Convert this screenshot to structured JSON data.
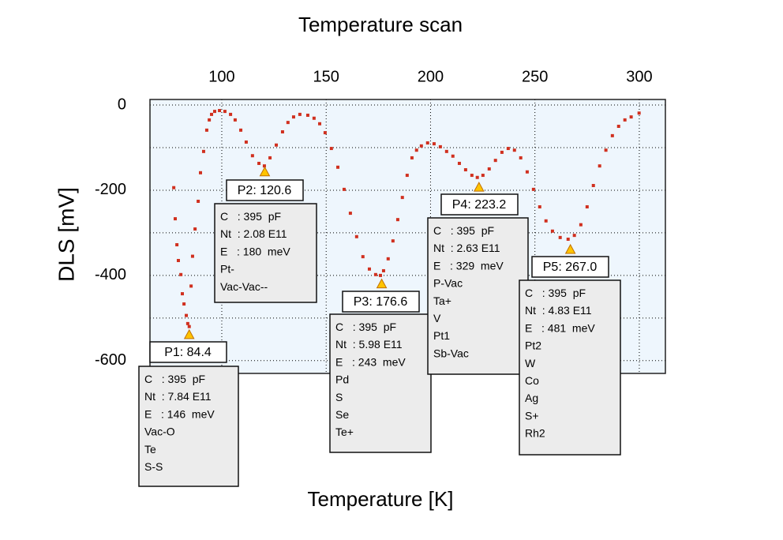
{
  "chart_data": {
    "type": "scatter",
    "title": "Temperature scan",
    "xlabel": "Temperature  [K]",
    "ylabel": "DLS [mV]",
    "xlim": [
      65.6,
      312.5
    ],
    "xticks": [
      100,
      150,
      200,
      250,
      300
    ],
    "xaxis_position": "top",
    "ylim": [
      -630,
      13
    ],
    "yticks": [
      0,
      -200,
      -400,
      -600
    ],
    "yminor": [
      -100,
      -300,
      -500
    ],
    "grid": true,
    "color": "#d0301f",
    "background": "#eef6fd",
    "series": [
      {
        "name": "DLS",
        "x": [
          77.0,
          77.7,
          78.5,
          79.2,
          80.4,
          81.1,
          81.9,
          83.0,
          83.7,
          84.4,
          85.3,
          86.0,
          87.2,
          88.7,
          89.8,
          91.3,
          92.8,
          94.0,
          95.1,
          96.6,
          98.9,
          101.5,
          104.2,
          106.4,
          109.1,
          111.7,
          114.7,
          117.8,
          120.4,
          123.1,
          126.1,
          129.1,
          131.7,
          134.4,
          137.4,
          141.2,
          144.2,
          146.9,
          149.5,
          152.5,
          155.6,
          158.6,
          161.6,
          164.6,
          167.6,
          170.7,
          173.7,
          176.0,
          177.5,
          179.7,
          182.0,
          184.3,
          186.5,
          188.8,
          191.1,
          193.3,
          195.6,
          198.6,
          201.7,
          204.7,
          207.7,
          210.7,
          213.8,
          216.8,
          219.8,
          222.4,
          225.1,
          228.1,
          231.1,
          234.2,
          237.2,
          240.2,
          243.2,
          246.3,
          249.3,
          252.3,
          255.3,
          258.4,
          262.1,
          265.9,
          268.9,
          272.0,
          275.0,
          278.0,
          281.0,
          284.0,
          287.1,
          290.1,
          293.1,
          296.1,
          299.9
        ],
        "values": [
          -194,
          -267,
          -328,
          -365,
          -398,
          -443,
          -467,
          -494,
          -513,
          -520,
          -425,
          -355,
          -291,
          -226,
          -159,
          -109,
          -59,
          -35,
          -22,
          -15,
          -13,
          -15,
          -22,
          -35,
          -59,
          -87,
          -119,
          -137,
          -143,
          -124,
          -94,
          -63,
          -41,
          -28,
          -22,
          -24,
          -31,
          -44,
          -65,
          -102,
          -146,
          -198,
          -254,
          -309,
          -356,
          -385,
          -398,
          -400,
          -389,
          -361,
          -319,
          -269,
          -217,
          -165,
          -124,
          -106,
          -96,
          -89,
          -91,
          -98,
          -109,
          -120,
          -137,
          -152,
          -165,
          -170,
          -165,
          -150,
          -130,
          -111,
          -102,
          -106,
          -124,
          -157,
          -198,
          -239,
          -272,
          -296,
          -311,
          -315,
          -306,
          -281,
          -239,
          -189,
          -143,
          -106,
          -72,
          -50,
          -35,
          -28,
          -19
        ]
      }
    ],
    "peaks": [
      {
        "x": {
          "value": 84.4,
          "label": "P1: 84.4"
        },
        "y": -539,
        "info": [
          "C   : 395  pF",
          "Nt  : 7.84 E11",
          "E   : 146  meV",
          "Vac-O",
          "Te",
          "S-S"
        ]
      },
      {
        "x": {
          "value": 120.6,
          "label": "P2: 120.6"
        },
        "y": -157,
        "info": [
          "C   : 395  pF",
          "Nt  : 2.08 E11",
          "E   : 180  meV",
          "Pt-",
          "Vac-Vac--"
        ]
      },
      {
        "x": {
          "value": 176.6,
          "label": "P3: 176.6"
        },
        "y": -420,
        "info": [
          "C   : 395  pF",
          "Nt  : 5.98 E11",
          "E   : 243  meV",
          "Pd",
          "S",
          "Se",
          "Te+"
        ]
      },
      {
        "x": {
          "value": 223.2,
          "label": "P4: 223.2"
        },
        "y": -193,
        "info": [
          "C   : 395  pF",
          "Nt  : 2.63 E11",
          "E   : 329  meV",
          "P-Vac",
          "Ta+",
          "V",
          "Pt1",
          "Sb-Vac"
        ]
      },
      {
        "x": {
          "value": 267.0,
          "label": "P5: 267.0"
        },
        "y": -339,
        "info": [
          "C   : 395  pF",
          "Nt  : 4.83 E11",
          "E   : 481  meV",
          "Pt2",
          "W",
          "Co",
          "Ag",
          "S+",
          "Rh2"
        ]
      }
    ]
  }
}
